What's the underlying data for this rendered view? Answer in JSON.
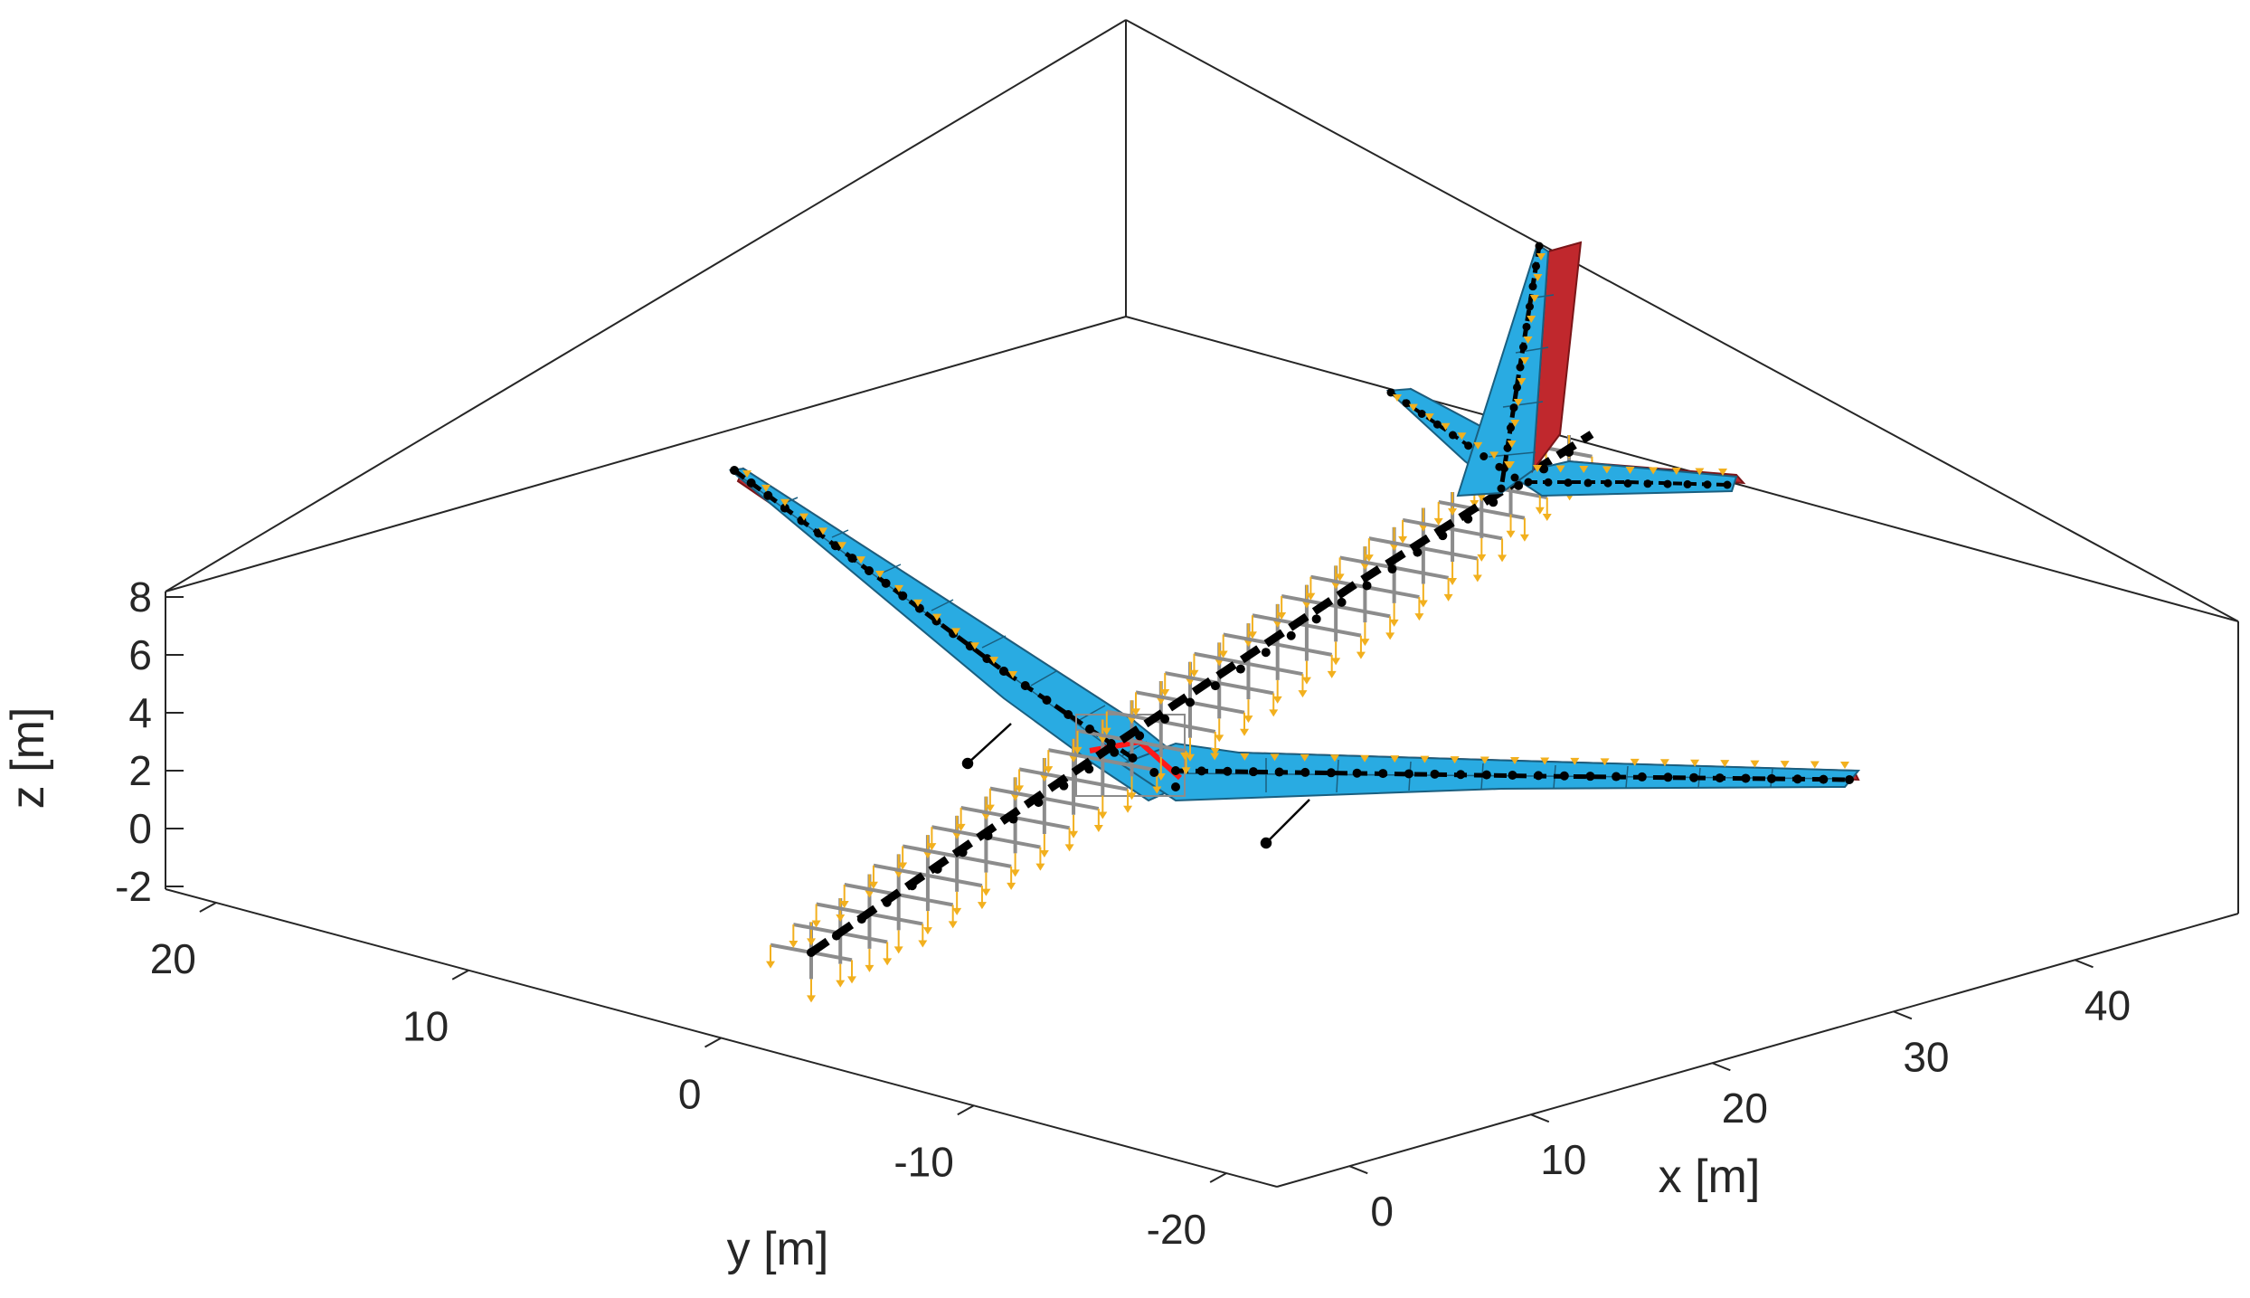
{
  "figure": {
    "xlabel": "x [m]",
    "ylabel": "y [m]",
    "zlabel": "z [m]"
  },
  "chart_data": {
    "type": "3d-structural-model",
    "title": "",
    "xlabel": "x [m]",
    "ylabel": "y [m]",
    "zlabel": "z [m]",
    "xlim": [
      -4,
      49
    ],
    "ylim": [
      -22,
      22
    ],
    "zlim": [
      -2.5,
      8
    ],
    "x_ticks": [
      "0",
      "10",
      "20",
      "30",
      "40"
    ],
    "y_ticks": [
      "20",
      "10",
      "0",
      "-10",
      "-20"
    ],
    "z_ticks": [
      "8",
      "6",
      "4",
      "2",
      "0",
      "-2"
    ],
    "grid": false,
    "box": true,
    "colors": {
      "panel_fill": "#29abe2",
      "panel_edge": "#1a5f80",
      "control_surface": "#c0282d",
      "beam": "#000000",
      "node": "#000000",
      "load_marker": "#f2b01e",
      "lumped_mass_link": "#8c8c8c",
      "axes": "#262626"
    }
  }
}
